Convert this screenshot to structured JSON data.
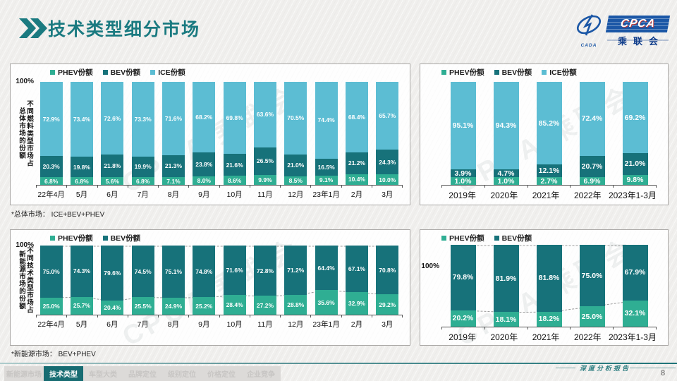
{
  "page": {
    "title": "技术类型细分市场",
    "page_number": "8",
    "watermark": "CPCA 乘联会"
  },
  "logo": {
    "acronym": "CPCA",
    "cn_name": "乘联会",
    "icon_caption": "CADA"
  },
  "footer_nav": {
    "report_label": "深度分析报告",
    "tabs": [
      {
        "label": "新能源市场",
        "active": false
      },
      {
        "label": "技术类型",
        "active": true
      },
      {
        "label": "车型大类",
        "active": false
      },
      {
        "label": "品牌定位",
        "active": false
      },
      {
        "label": "级别定位",
        "active": false
      },
      {
        "label": "价格定位",
        "active": false
      },
      {
        "label": "企业竞争",
        "active": false
      }
    ]
  },
  "colors": {
    "phev": "#2FAE93",
    "bev": "#17727A",
    "ice": "#5CBDD3",
    "accent": "#1A7A80"
  },
  "chart_data": [
    {
      "name": "overall-market-by-fuel-monthly",
      "type": "bar",
      "stacked": true,
      "ylim": [
        0,
        100
      ],
      "axis_max_label": "100%",
      "ylabel_lines": [
        "不同燃料类型市场占",
        "总体市场的份额"
      ],
      "legend_position": "top",
      "connectors": false,
      "note": "*总体市场：  ICE+BEV+PHEV",
      "categories": [
        "22年4月",
        "5月",
        "6月",
        "7月",
        "8月",
        "9月",
        "10月",
        "11月",
        "12月",
        "23年1月",
        "2月",
        "3月"
      ],
      "series": [
        {
          "name": "PHEV份额",
          "color": "#2FAE93",
          "values": [
            6.8,
            6.8,
            5.6,
            6.8,
            7.1,
            8.0,
            8.6,
            9.9,
            8.5,
            9.1,
            10.4,
            10.0
          ]
        },
        {
          "name": "BEV份额",
          "color": "#17727A",
          "values": [
            20.3,
            19.8,
            21.8,
            19.9,
            21.3,
            23.8,
            21.6,
            26.5,
            21.0,
            16.5,
            21.2,
            24.3
          ]
        },
        {
          "name": "ICE份额",
          "color": "#5CBDD3",
          "values": [
            72.9,
            73.4,
            72.6,
            73.3,
            71.6,
            68.2,
            69.8,
            63.6,
            70.5,
            74.4,
            68.4,
            65.7
          ]
        }
      ]
    },
    {
      "name": "overall-market-by-fuel-yearly",
      "type": "bar",
      "stacked": true,
      "ylim": [
        0,
        100
      ],
      "legend_position": "top",
      "connectors": false,
      "categories": [
        "2019年",
        "2020年",
        "2021年",
        "2022年",
        "2023年1-3月"
      ],
      "series": [
        {
          "name": "PHEV份额",
          "color": "#2FAE93",
          "values": [
            1.0,
            1.0,
            2.7,
            6.9,
            9.8
          ]
        },
        {
          "name": "BEV份额",
          "color": "#17727A",
          "values": [
            3.9,
            4.7,
            12.1,
            20.7,
            21.0
          ]
        },
        {
          "name": "ICE份额",
          "color": "#5CBDD3",
          "values": [
            95.1,
            94.3,
            85.2,
            72.4,
            69.2
          ]
        }
      ]
    },
    {
      "name": "nev-market-by-tech-monthly",
      "type": "bar",
      "stacked": true,
      "ylim": [
        0,
        100
      ],
      "axis_max_label": "100%",
      "ylabel_lines": [
        "不同技术类型市场占",
        "新能源市场的份额"
      ],
      "legend_position": "top",
      "connectors": true,
      "note": "*新能源市场：  BEV+PHEV",
      "categories": [
        "22年4月",
        "5月",
        "6月",
        "7月",
        "8月",
        "9月",
        "10月",
        "11月",
        "12月",
        "23年1月",
        "2月",
        "3月"
      ],
      "series": [
        {
          "name": "PHEV份额",
          "color": "#2FAE93",
          "values": [
            25.0,
            25.7,
            20.4,
            25.5,
            24.9,
            25.2,
            28.4,
            27.2,
            28.8,
            35.6,
            32.9,
            29.2
          ]
        },
        {
          "name": "BEV份额",
          "color": "#17727A",
          "values": [
            75.0,
            74.3,
            79.6,
            74.5,
            75.1,
            74.8,
            71.6,
            72.8,
            71.2,
            64.4,
            67.1,
            70.8
          ]
        }
      ]
    },
    {
      "name": "nev-market-by-tech-yearly",
      "type": "bar",
      "stacked": true,
      "ylim": [
        0,
        100
      ],
      "axis_max_label": "100%",
      "legend_position": "top",
      "connectors": true,
      "categories": [
        "2019年",
        "2020年",
        "2021年",
        "2022年",
        "2023年1-3月"
      ],
      "series": [
        {
          "name": "PHEV份额",
          "color": "#2FAE93",
          "values": [
            20.2,
            18.1,
            18.2,
            25.0,
            32.1
          ]
        },
        {
          "name": "BEV份额",
          "color": "#17727A",
          "values": [
            79.8,
            81.9,
            81.8,
            75.0,
            67.9
          ]
        }
      ]
    }
  ]
}
